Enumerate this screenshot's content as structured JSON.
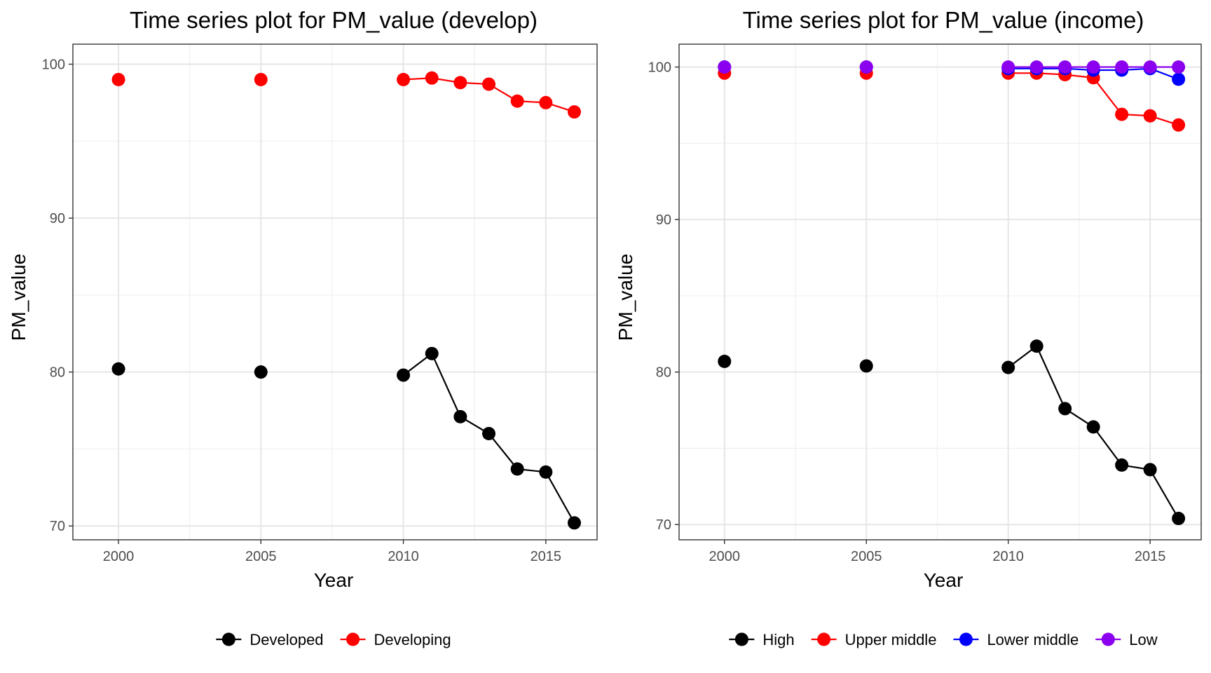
{
  "chart_data": [
    {
      "type": "line",
      "title": "Time series plot for PM_value (develop)",
      "xlabel": "Year",
      "ylabel": "PM_value",
      "xlim": [
        1998.4,
        2016.8
      ],
      "ylim": [
        69.1,
        101.3
      ],
      "x_ticks": [
        2000,
        2005,
        2010,
        2015
      ],
      "y_ticks": [
        70,
        80,
        90,
        100
      ],
      "grid": true,
      "legend_position": "bottom",
      "series": [
        {
          "name": "Developed",
          "color": "#000000",
          "x": [
            2000,
            2005,
            2010,
            2011,
            2012,
            2013,
            2014,
            2015,
            2016
          ],
          "y": [
            80.2,
            80.0,
            79.8,
            81.2,
            77.1,
            76.0,
            73.7,
            73.5,
            70.2
          ]
        },
        {
          "name": "Developing",
          "color": "#ff0000",
          "x": [
            2000,
            2005,
            2010,
            2011,
            2012,
            2013,
            2014,
            2015,
            2016
          ],
          "y": [
            99.0,
            99.0,
            99.0,
            99.1,
            98.8,
            98.7,
            97.6,
            97.5,
            96.9
          ]
        }
      ]
    },
    {
      "type": "line",
      "title": "Time series plot for PM_value (income)",
      "xlabel": "Year",
      "ylabel": "PM_value",
      "xlim": [
        1998.4,
        2016.8
      ],
      "ylim": [
        69.0,
        101.5
      ],
      "x_ticks": [
        2000,
        2005,
        2010,
        2015
      ],
      "y_ticks": [
        70,
        80,
        90,
        100
      ],
      "grid": true,
      "legend_position": "bottom",
      "series": [
        {
          "name": "High",
          "color": "#000000",
          "x": [
            2000,
            2005,
            2010,
            2011,
            2012,
            2013,
            2014,
            2015,
            2016
          ],
          "y": [
            80.7,
            80.4,
            80.3,
            81.7,
            77.6,
            76.4,
            73.9,
            73.6,
            70.4
          ]
        },
        {
          "name": "Upper middle",
          "color": "#ff0000",
          "x": [
            2000,
            2005,
            2010,
            2011,
            2012,
            2013,
            2014,
            2015,
            2016
          ],
          "y": [
            99.6,
            99.6,
            99.6,
            99.6,
            99.5,
            99.3,
            96.9,
            96.8,
            96.2
          ]
        },
        {
          "name": "Lower middle",
          "color": "#0000ff",
          "x": [
            2000,
            2005,
            2010,
            2011,
            2012,
            2013,
            2014,
            2015,
            2016
          ],
          "y": [
            100.0,
            100.0,
            99.9,
            99.9,
            99.9,
            99.8,
            99.8,
            99.9,
            99.2
          ]
        },
        {
          "name": "Low",
          "color": "#8b00ee",
          "x": [
            2000,
            2005,
            2010,
            2011,
            2012,
            2013,
            2014,
            2015,
            2016
          ],
          "y": [
            100.0,
            100.0,
            100.0,
            100.0,
            100.0,
            100.0,
            100.0,
            100.0,
            100.0
          ]
        }
      ]
    }
  ]
}
